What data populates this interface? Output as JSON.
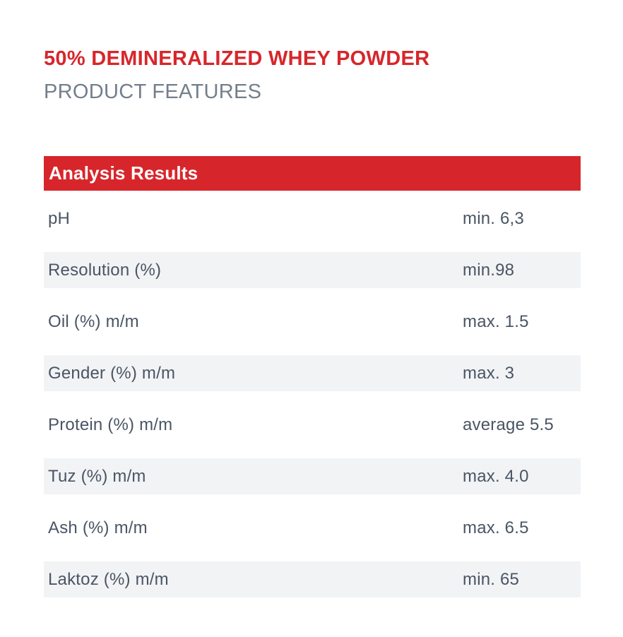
{
  "page": {
    "title": "50% DEMINERALIZED WHEY POWDER",
    "subtitle": "PRODUCT FEATURES"
  },
  "table": {
    "header": "Analysis Results",
    "rows": [
      {
        "label": "pH",
        "value": "min. 6,3"
      },
      {
        "label": "Resolution (%)",
        "value": "min.98"
      },
      {
        "label": "Oil (%) m/m",
        "value": "max. 1.5"
      },
      {
        "label": "Gender (%) m/m",
        "value": "max. 3"
      },
      {
        "label": "Protein (%) m/m",
        "value": "average 5.5"
      },
      {
        "label": "Tuz (%) m/m",
        "value": "max. 4.0"
      },
      {
        "label": "Ash (%) m/m",
        "value": "max. 6.5"
      },
      {
        "label": "Laktoz (%) m/m",
        "value": "min. 65"
      }
    ]
  },
  "colors": {
    "accent_red": "#D7262B",
    "row_alt_bg": "#F2F3F5",
    "row_text": "#4A5565",
    "subtitle_gray": "#747E8B"
  }
}
